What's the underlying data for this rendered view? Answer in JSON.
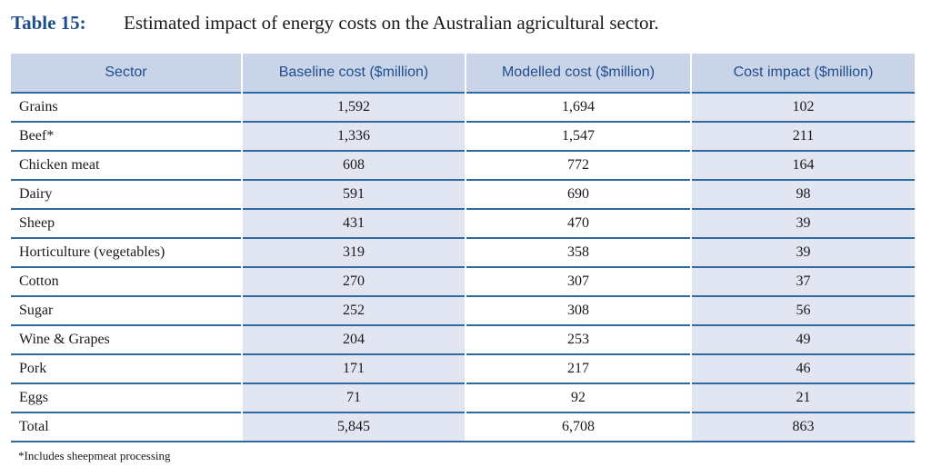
{
  "caption": {
    "label": "Table 15:",
    "title": "Estimated impact of energy costs on the Australian agricultural sector."
  },
  "table": {
    "headers": [
      "Sector",
      "Baseline cost ($million)",
      "Modelled cost ($million)",
      "Cost impact ($million)"
    ],
    "rows": [
      {
        "sector": "Grains",
        "baseline": "1,592",
        "modelled": "1,694",
        "impact": "102"
      },
      {
        "sector": "Beef*",
        "baseline": "1,336",
        "modelled": "1,547",
        "impact": "211"
      },
      {
        "sector": "Chicken meat",
        "baseline": "608",
        "modelled": "772",
        "impact": "164"
      },
      {
        "sector": "Dairy",
        "baseline": "591",
        "modelled": "690",
        "impact": "98"
      },
      {
        "sector": "Sheep",
        "baseline": "431",
        "modelled": "470",
        "impact": "39"
      },
      {
        "sector": "Horticulture (vegetables)",
        "baseline": "319",
        "modelled": "358",
        "impact": "39"
      },
      {
        "sector": "Cotton",
        "baseline": "270",
        "modelled": "307",
        "impact": "37"
      },
      {
        "sector": "Sugar",
        "baseline": "252",
        "modelled": "308",
        "impact": "56"
      },
      {
        "sector": "Wine & Grapes",
        "baseline": "204",
        "modelled": "253",
        "impact": "49"
      },
      {
        "sector": "Pork",
        "baseline": "171",
        "modelled": "217",
        "impact": "46"
      },
      {
        "sector": "Eggs",
        "baseline": "71",
        "modelled": "92",
        "impact": "21"
      },
      {
        "sector": "Total",
        "baseline": "5,845",
        "modelled": "6,708",
        "impact": "863"
      }
    ]
  },
  "footnote": "*Includes sheepmeat processing",
  "colors": {
    "caption_label": "#1f4e8c",
    "header_bg": "#c9d4e9",
    "header_text": "#1f4e8c",
    "shaded_cell": "#e1e6f2",
    "row_rule": "#2f6aa3"
  }
}
